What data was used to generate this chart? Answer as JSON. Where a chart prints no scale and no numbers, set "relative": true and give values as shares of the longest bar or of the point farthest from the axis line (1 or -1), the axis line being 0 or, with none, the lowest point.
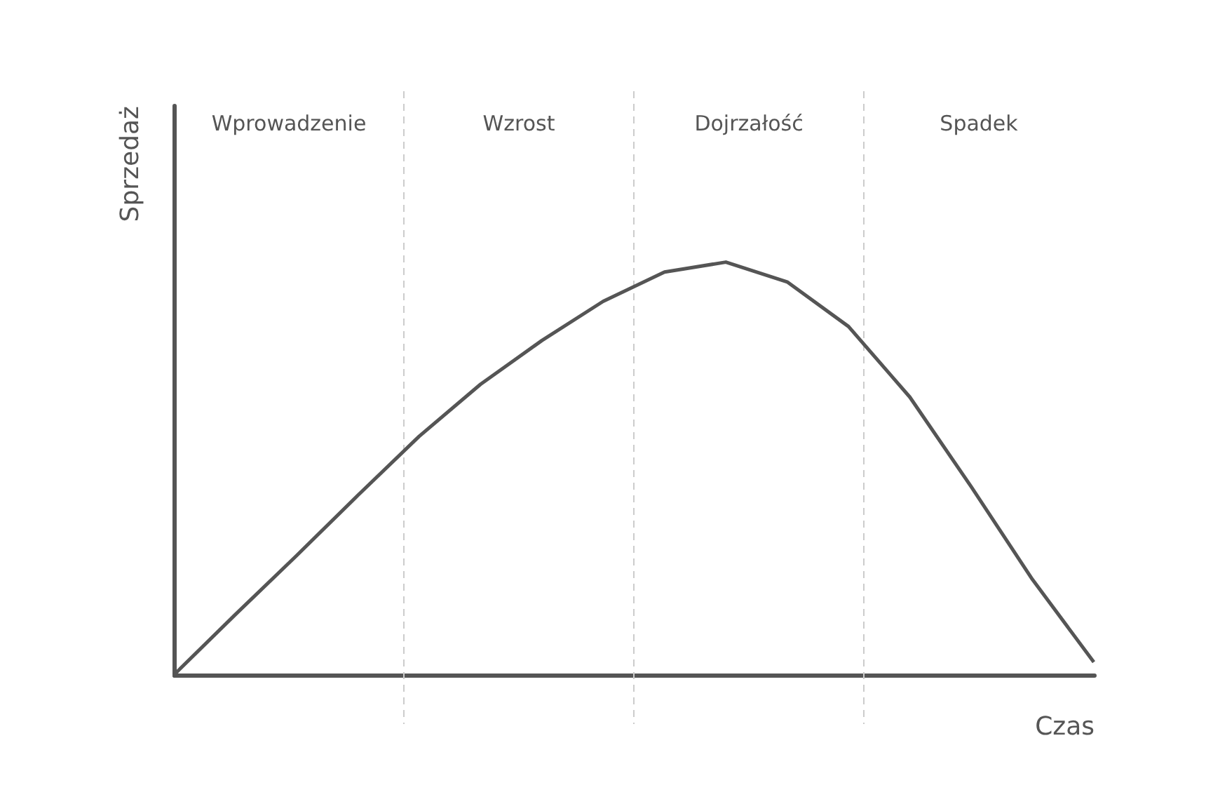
{
  "chart_data": {
    "type": "line",
    "relative": true,
    "xlabel": "Czas",
    "ylabel": "Sprzedaż",
    "grid": false,
    "categories": [
      null,
      null,
      null,
      null,
      null,
      null,
      null,
      null,
      null,
      null,
      null,
      null,
      null,
      null,
      null,
      null
    ],
    "series": [
      {
        "color": "#555555",
        "values": [
          0,
          0.146,
          0.289,
          0.435,
          0.578,
          0.704,
          0.81,
          0.905,
          0.976,
          1,
          0.952,
          0.844,
          0.673,
          0.456,
          0.231,
          0.031
        ]
      }
    ],
    "annotations": [
      "Wprowadzenie",
      "Wzrost",
      "Dojrzałość",
      "Spadek"
    ]
  }
}
